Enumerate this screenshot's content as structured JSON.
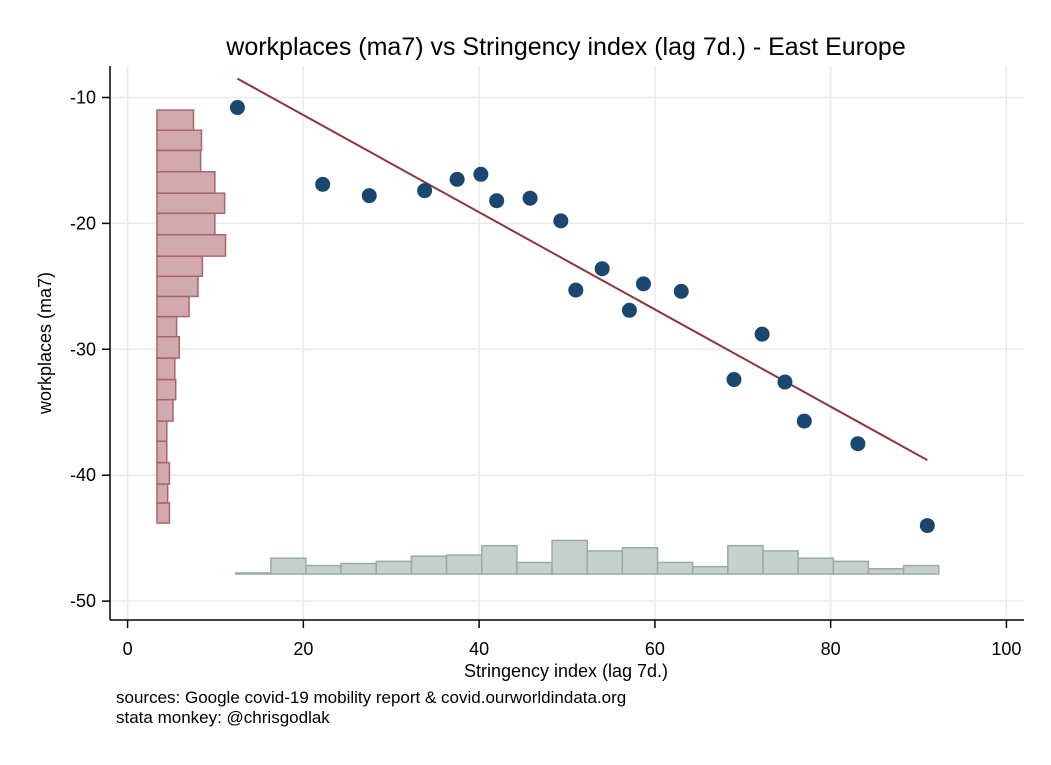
{
  "chart_data": {
    "type": "scatter",
    "title": "workplaces (ma7) vs Stringency index (lag 7d.) - East Europe",
    "xlabel": "Stringency index (lag 7d.)",
    "ylabel": "workplaces (ma7)",
    "xlim": [
      -2,
      102
    ],
    "ylim": [
      -51.5,
      -7.5
    ],
    "xticks": [
      0,
      20,
      40,
      60,
      80,
      100
    ],
    "yticks": [
      -10,
      -20,
      -30,
      -40,
      -50
    ],
    "grid": true,
    "legend": "none",
    "colors": {
      "points": "#1a476f",
      "fit_line": "#90353b",
      "y_hist_fill": "#d2a9ad",
      "y_hist_stroke": "#a9656c",
      "x_hist_fill": "#c5d1cd",
      "x_hist_stroke": "#98aca5",
      "grid": "#eaeaea"
    },
    "points": [
      {
        "x": 12.5,
        "y": -10.8
      },
      {
        "x": 22.2,
        "y": -16.9
      },
      {
        "x": 27.5,
        "y": -17.8
      },
      {
        "x": 33.8,
        "y": -17.4
      },
      {
        "x": 37.5,
        "y": -16.5
      },
      {
        "x": 40.2,
        "y": -16.1
      },
      {
        "x": 42.0,
        "y": -18.2
      },
      {
        "x": 45.8,
        "y": -18.0
      },
      {
        "x": 49.3,
        "y": -19.8
      },
      {
        "x": 51.0,
        "y": -25.3
      },
      {
        "x": 54.0,
        "y": -23.6
      },
      {
        "x": 57.1,
        "y": -26.9
      },
      {
        "x": 58.7,
        "y": -24.8
      },
      {
        "x": 63.0,
        "y": -25.4
      },
      {
        "x": 69.0,
        "y": -32.4
      },
      {
        "x": 72.2,
        "y": -28.8
      },
      {
        "x": 74.8,
        "y": -32.6
      },
      {
        "x": 77.0,
        "y": -35.7
      },
      {
        "x": 83.1,
        "y": -37.5
      },
      {
        "x": 91.0,
        "y": -44.0
      }
    ],
    "fit_line": {
      "x": [
        12.5,
        91.0
      ],
      "y": [
        -8.5,
        -38.8
      ]
    },
    "y_histogram": {
      "bins": [
        {
          "from": -43.8,
          "to": -42.2,
          "size": 1.4
        },
        {
          "from": -42.2,
          "to": -40.7,
          "size": 1.2
        },
        {
          "from": -40.7,
          "to": -39.0,
          "size": 1.4
        },
        {
          "from": -39.0,
          "to": -37.3,
          "size": 1.1
        },
        {
          "from": -37.3,
          "to": -35.7,
          "size": 1.1
        },
        {
          "from": -35.7,
          "to": -34.0,
          "size": 1.8
        },
        {
          "from": -34.0,
          "to": -32.4,
          "size": 2.1
        },
        {
          "from": -32.4,
          "to": -30.7,
          "size": 2.0
        },
        {
          "from": -30.7,
          "to": -29.0,
          "size": 2.5
        },
        {
          "from": -29.0,
          "to": -27.4,
          "size": 2.2
        },
        {
          "from": -27.4,
          "to": -25.8,
          "size": 3.6
        },
        {
          "from": -25.8,
          "to": -24.2,
          "size": 4.6
        },
        {
          "from": -24.2,
          "to": -22.6,
          "size": 5.1
        },
        {
          "from": -22.6,
          "to": -20.9,
          "size": 7.7
        },
        {
          "from": -20.9,
          "to": -19.2,
          "size": 6.5
        },
        {
          "from": -19.2,
          "to": -17.6,
          "size": 7.6
        },
        {
          "from": -17.6,
          "to": -15.9,
          "size": 6.5
        },
        {
          "from": -15.9,
          "to": -14.2,
          "size": 4.9
        },
        {
          "from": -14.2,
          "to": -12.6,
          "size": 5.0
        },
        {
          "from": -12.6,
          "to": -11.0,
          "size": 4.1
        }
      ]
    },
    "x_histogram": {
      "bins": [
        {
          "from": 12.3,
          "to": 16.3,
          "size": 0.1
        },
        {
          "from": 16.3,
          "to": 20.3,
          "size": 1.5
        },
        {
          "from": 20.3,
          "to": 24.3,
          "size": 0.8
        },
        {
          "from": 24.3,
          "to": 28.3,
          "size": 1.0
        },
        {
          "from": 28.3,
          "to": 32.3,
          "size": 1.2
        },
        {
          "from": 32.3,
          "to": 36.3,
          "size": 1.7
        },
        {
          "from": 36.3,
          "to": 40.3,
          "size": 1.8
        },
        {
          "from": 40.3,
          "to": 44.3,
          "size": 2.7
        },
        {
          "from": 44.3,
          "to": 48.3,
          "size": 1.1
        },
        {
          "from": 48.3,
          "to": 52.3,
          "size": 3.2
        },
        {
          "from": 52.3,
          "to": 56.3,
          "size": 2.2
        },
        {
          "from": 56.3,
          "to": 60.3,
          "size": 2.5
        },
        {
          "from": 60.3,
          "to": 64.3,
          "size": 1.1
        },
        {
          "from": 64.3,
          "to": 68.3,
          "size": 0.7
        },
        {
          "from": 68.3,
          "to": 72.3,
          "size": 2.7
        },
        {
          "from": 72.3,
          "to": 76.3,
          "size": 2.2
        },
        {
          "from": 76.3,
          "to": 80.3,
          "size": 1.5
        },
        {
          "from": 80.3,
          "to": 84.3,
          "size": 1.2
        },
        {
          "from": 84.3,
          "to": 88.3,
          "size": 0.5
        },
        {
          "from": 88.3,
          "to": 92.3,
          "size": 0.8
        }
      ]
    }
  },
  "notes": {
    "sources": "sources: Google covid-19 mobility report & covid.ourworldindata.org",
    "author": "stata monkey: @chrisgodlak"
  }
}
